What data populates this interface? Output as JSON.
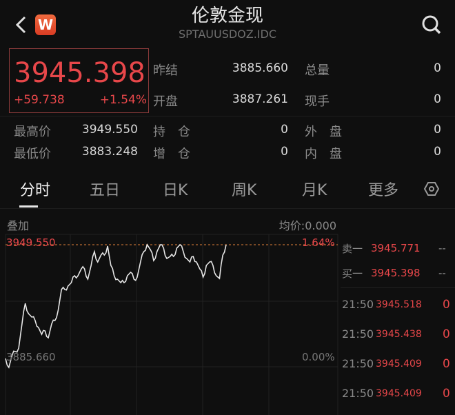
{
  "header": {
    "title": "伦敦金现",
    "code": "SPTAUUSDOZ.IDC",
    "back_icon": "chevron-left-icon",
    "logo_letter": "W",
    "search_icon": "search-icon"
  },
  "quote": {
    "price": "3945.398",
    "change": "+59.738",
    "change_pct": "+1.54%"
  },
  "stats": [
    {
      "label": "昨结",
      "value": "3885.660"
    },
    {
      "label": "总量",
      "value": "0"
    },
    {
      "label": "开盘",
      "value": "3887.261"
    },
    {
      "label": "现手",
      "value": "0"
    },
    {
      "label": "最高价",
      "value": "3949.550"
    },
    {
      "label": "持　仓",
      "value": "0"
    },
    {
      "label": "外　盘",
      "value": "0"
    },
    {
      "label": "最低价",
      "value": "3883.248"
    },
    {
      "label": "增　仓",
      "value": "0"
    },
    {
      "label": "内　盘",
      "value": "0"
    }
  ],
  "tabs": [
    {
      "label": "分时"
    },
    {
      "label": "五日"
    },
    {
      "label": "日K"
    },
    {
      "label": "周K"
    },
    {
      "label": "月K"
    },
    {
      "label": "更多"
    }
  ],
  "tab_settings_icon": "settings-hexagon-icon",
  "chart_header": {
    "overlay": "叠加",
    "avg": "均价:0.000"
  },
  "order_book": [
    {
      "side": "卖一",
      "price": "3945.771",
      "vol": "--"
    },
    {
      "side": "买一",
      "price": "3945.398",
      "vol": "--"
    }
  ],
  "trades": [
    {
      "time": "21:50",
      "price": "3945.518",
      "vol": "0"
    },
    {
      "time": "21:50",
      "price": "3945.438",
      "vol": "0"
    },
    {
      "time": "21:50",
      "price": "3945.409",
      "vol": "0"
    },
    {
      "time": "21:50",
      "price": "3945.409",
      "vol": "0"
    }
  ],
  "colors": {
    "up": "#e8474a",
    "line": "#e6e6e6",
    "bg": "#0f0f0f",
    "accent_logo": "#e8502f"
  },
  "chart_data": {
    "type": "line",
    "top_label": "3949.550",
    "top_pct": "1.64%",
    "base_label": "3885.660",
    "base_pct": "0.00%",
    "ylim": [
      3883.248,
      3949.55
    ],
    "values": [
      3888.26,
      3883.43,
      3890.12,
      3891.97,
      3893.83,
      3906.83,
      3917.97,
      3912.4,
      3910.54,
      3908.69,
      3904.97,
      3901.26,
      3903.12,
      3899.4,
      3906.83,
      3908.69,
      3914.26,
      3925.4,
      3925.4,
      3927.26,
      3929.11,
      3932.83,
      3932.83,
      3936.54,
      3936.54,
      3930.97,
      3938.4,
      3945.83,
      3940.26,
      3943.97,
      3943.97,
      3948.8,
      3938.4,
      3932.83,
      3930.97,
      3929.11,
      3929.11,
      3932.83,
      3934.69,
      3930.97,
      3932.09,
      3940.26,
      3945.83,
      3949.55,
      3946.94,
      3941.0,
      3945.83,
      3949.55,
      3947.68,
      3942.11,
      3943.23,
      3943.23,
      3947.68,
      3949.55,
      3945.83,
      3942.11,
      3940.26,
      3943.23,
      3940.26,
      3936.54,
      3932.09,
      3938.4,
      3940.26,
      3938.4,
      3932.83,
      3931.34,
      3943.97,
      3949.55
    ]
  }
}
